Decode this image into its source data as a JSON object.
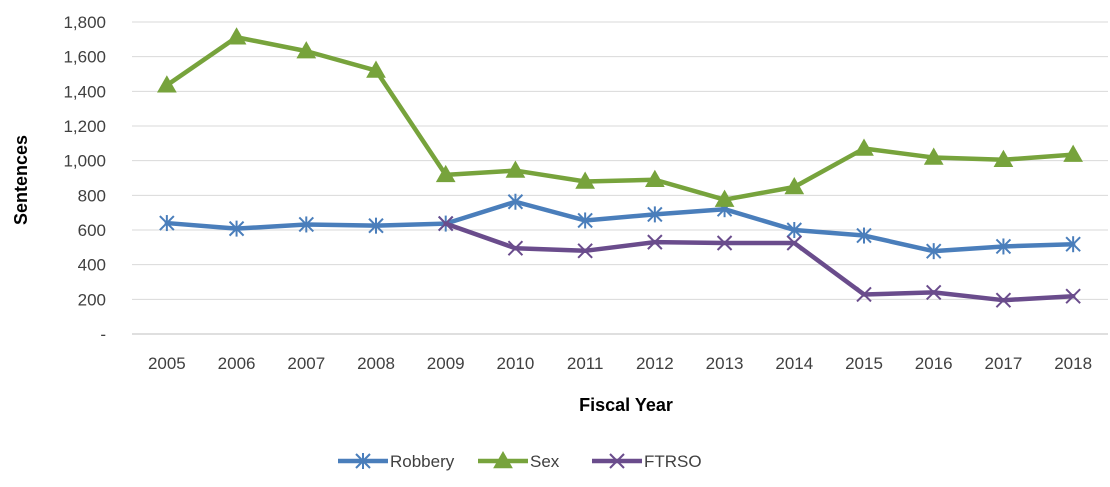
{
  "chart_data": {
    "type": "line",
    "title": "",
    "xlabel": "Fiscal Year",
    "ylabel": "Sentences",
    "x": [
      "2005",
      "2006",
      "2007",
      "2008",
      "2009",
      "2010",
      "2011",
      "2012",
      "2013",
      "2014",
      "2015",
      "2016",
      "2017",
      "2018"
    ],
    "ylim": [
      0,
      1800
    ],
    "y_ticks": [
      0,
      200,
      400,
      600,
      800,
      1000,
      1200,
      1400,
      1600,
      1800
    ],
    "y_tick_labels": [
      "-",
      "200",
      "400",
      "600",
      "800",
      "1,000",
      "1,200",
      "1,400",
      "1,600",
      "1,800"
    ],
    "grid": "horizontal",
    "legend_position": "bottom",
    "series": [
      {
        "name": "Robbery",
        "color": "#4a7ebb",
        "marker": "asterisk",
        "values": [
          640,
          608,
          632,
          625,
          637,
          763,
          655,
          690,
          720,
          600,
          568,
          478,
          505,
          518
        ]
      },
      {
        "name": "Sex",
        "color": "#77a33c",
        "marker": "triangle",
        "values": [
          1435,
          1712,
          1632,
          1520,
          918,
          943,
          880,
          890,
          775,
          848,
          1070,
          1018,
          1005,
          1035
        ]
      },
      {
        "name": "FTRSO",
        "color": "#6a4c8c",
        "marker": "x",
        "values": [
          null,
          null,
          null,
          null,
          637,
          495,
          480,
          530,
          525,
          525,
          228,
          240,
          195,
          218
        ]
      }
    ]
  }
}
